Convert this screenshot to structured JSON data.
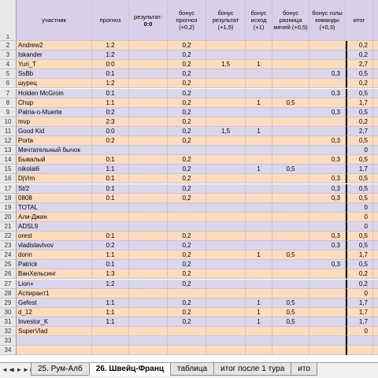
{
  "headers": {
    "col_a": "участник",
    "col_b": "прогноз",
    "col_c": "результат:",
    "col_c_val": "0:0",
    "col_d": "бонус прогноз (+0,2)",
    "col_e": "бонус результат (+1,5)",
    "col_f": "бонус исход (+1)",
    "col_g": "бонус разница мячей (+0,5)",
    "col_h": "бонус голы команды (+0,3)",
    "col_i": "итог"
  },
  "rows": [
    {
      "n": "2",
      "name": "Andrew2",
      "prog": "1:2",
      "bp": "0,2",
      "br": "",
      "bi": "",
      "bd": "",
      "bg": "",
      "tot": "0,2"
    },
    {
      "n": "3",
      "name": "Iskander",
      "prog": "1:2",
      "bp": "0,2",
      "br": "",
      "bi": "",
      "bd": "",
      "bg": "",
      "tot": "0,2"
    },
    {
      "n": "4",
      "name": "Yuri_T",
      "prog": "0:0",
      "bp": "0,2",
      "br": "1,5",
      "bi": "1",
      "bd": "",
      "bg": "",
      "tot": "2,7"
    },
    {
      "n": "5",
      "name": "SsBb",
      "prog": "0:1",
      "bp": "0,2",
      "br": "",
      "bi": "",
      "bd": "",
      "bg": "0,3",
      "tot": "0,5"
    },
    {
      "n": "6",
      "name": "шурец",
      "prog": "1:2",
      "bp": "0,2",
      "br": "",
      "bi": "",
      "bd": "",
      "bg": "",
      "tot": "0,2"
    },
    {
      "n": "7",
      "name": "Holden McGroin",
      "prog": "0:1",
      "bp": "0,2",
      "br": "",
      "bi": "",
      "bd": "",
      "bg": "0,3",
      "tot": "0,5"
    },
    {
      "n": "8",
      "name": "Chup",
      "prog": "1:1",
      "bp": "0,2",
      "br": "",
      "bi": "1",
      "bd": "0,5",
      "bg": "",
      "tot": "1,7"
    },
    {
      "n": "9",
      "name": "Patria-o-Muerte",
      "prog": "0:2",
      "bp": "0,2",
      "br": "",
      "bi": "",
      "bd": "",
      "bg": "0,3",
      "tot": "0,5"
    },
    {
      "n": "10",
      "name": "mvp",
      "prog": "2:3",
      "bp": "0,2",
      "br": "",
      "bi": "",
      "bd": "",
      "bg": "",
      "tot": "0,2"
    },
    {
      "n": "11",
      "name": "Good Kid",
      "prog": "0:0",
      "bp": "0,2",
      "br": "1,5",
      "bi": "1",
      "bd": "",
      "bg": "",
      "tot": "2,7"
    },
    {
      "n": "12",
      "name": "Porta",
      "prog": "0:2",
      "bp": "0,2",
      "br": "",
      "bi": "",
      "bd": "",
      "bg": "0,3",
      "tot": "0,5"
    },
    {
      "n": "13",
      "name": "Мечтательный бычок",
      "prog": "",
      "bp": "",
      "br": "",
      "bi": "",
      "bd": "",
      "bg": "",
      "tot": "0"
    },
    {
      "n": "14",
      "name": "Бывалый",
      "prog": "0:1",
      "bp": "0,2",
      "br": "",
      "bi": "",
      "bd": "",
      "bg": "0,3",
      "tot": "0,5"
    },
    {
      "n": "15",
      "name": "nikolai6",
      "prog": "1:1",
      "bp": "0,2",
      "br": "",
      "bi": "1",
      "bd": "0,5",
      "bg": "",
      "tot": "1,7"
    },
    {
      "n": "16",
      "name": "DjVim",
      "prog": "0:1",
      "bp": "0,2",
      "br": "",
      "bi": "",
      "bd": "",
      "bg": "0,3",
      "tot": "0,5"
    },
    {
      "n": "17",
      "name": "St/2",
      "prog": "0:1",
      "bp": "0,2",
      "br": "",
      "bi": "",
      "bd": "",
      "bg": "0,3",
      "tot": "0,5"
    },
    {
      "n": "18",
      "name": "0808",
      "prog": "0:1",
      "bp": "0,2",
      "br": "",
      "bi": "",
      "bd": "",
      "bg": "0,3",
      "tot": "0,5"
    },
    {
      "n": "19",
      "name": "TOTAL",
      "prog": "",
      "bp": "",
      "br": "",
      "bi": "",
      "bd": "",
      "bg": "",
      "tot": "0"
    },
    {
      "n": "20",
      "name": "Али-Джин",
      "prog": "",
      "bp": "",
      "br": "",
      "bi": "",
      "bd": "",
      "bg": "",
      "tot": "0"
    },
    {
      "n": "21",
      "name": "ADSL9",
      "prog": "",
      "bp": "",
      "br": "",
      "bi": "",
      "bd": "",
      "bg": "",
      "tot": "0"
    },
    {
      "n": "22",
      "name": "orest",
      "prog": "0:1",
      "bp": "0,2",
      "br": "",
      "bi": "",
      "bd": "",
      "bg": "0,3",
      "tot": "0,5"
    },
    {
      "n": "23",
      "name": "vladislavlvov",
      "prog": "0:2",
      "bp": "0,2",
      "br": "",
      "bi": "",
      "bd": "",
      "bg": "0,3",
      "tot": "0,5"
    },
    {
      "n": "24",
      "name": "donn",
      "prog": "1:1",
      "bp": "0,2",
      "br": "",
      "bi": "1",
      "bd": "0,5",
      "bg": "",
      "tot": "1,7"
    },
    {
      "n": "25",
      "name": "Patrick",
      "prog": "0:1",
      "bp": "0,2",
      "br": "",
      "bi": "",
      "bd": "",
      "bg": "0,3",
      "tot": "0,5"
    },
    {
      "n": "26",
      "name": "ВанХельсинг",
      "prog": "1:3",
      "bp": "0,2",
      "br": "",
      "bi": "",
      "bd": "",
      "bg": "",
      "tot": "0,2"
    },
    {
      "n": "27",
      "name": "Lion+",
      "prog": "1:2",
      "bp": "0,2",
      "br": "",
      "bi": "",
      "bd": "",
      "bg": "",
      "tot": "0,2"
    },
    {
      "n": "28",
      "name": "Аспирант1",
      "prog": "",
      "bp": "",
      "br": "",
      "bi": "",
      "bd": "",
      "bg": "",
      "tot": "0"
    },
    {
      "n": "29",
      "name": "Gefest",
      "prog": "1:1",
      "bp": "0,2",
      "br": "",
      "bi": "1",
      "bd": "0,5",
      "bg": "",
      "tot": "1,7"
    },
    {
      "n": "30",
      "name": "d_12",
      "prog": "1:1",
      "bp": "0,2",
      "br": "",
      "bi": "1",
      "bd": "0,5",
      "bg": "",
      "tot": "1,7"
    },
    {
      "n": "31",
      "name": "Investor_K",
      "prog": "1:1",
      "bp": "0,2",
      "br": "",
      "bi": "1",
      "bd": "0,5",
      "bg": "",
      "tot": "1,7"
    },
    {
      "n": "32",
      "name": "SuperVlad",
      "prog": "",
      "bp": "",
      "br": "",
      "bi": "",
      "bd": "",
      "bg": "",
      "tot": "0"
    },
    {
      "n": "33",
      "name": "",
      "prog": "",
      "bp": "",
      "br": "",
      "bi": "",
      "bd": "",
      "bg": "",
      "tot": ""
    },
    {
      "n": "34",
      "name": "",
      "prog": "",
      "bp": "",
      "br": "",
      "bi": "",
      "bd": "",
      "bg": "",
      "tot": ""
    }
  ],
  "header_row_num": "1",
  "tabs": {
    "nav_first": "◄◄",
    "nav_prev": "◄",
    "nav_next": "►",
    "nav_last": "►►",
    "items": [
      "25. Рум-Алб",
      "26. Швейц-Франц",
      "таблица",
      "итог после 1 тура",
      "ито"
    ]
  }
}
